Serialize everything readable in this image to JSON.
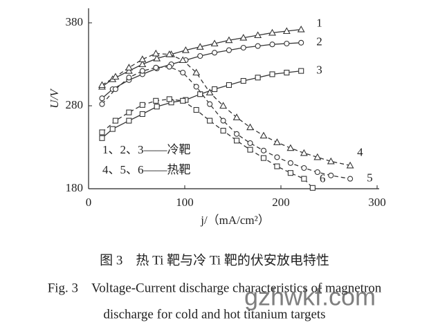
{
  "chart_data": {
    "type": "line",
    "x_label": "j/（mA/cm²）",
    "y_label": "U/V",
    "xlim": [
      0,
      300
    ],
    "xticks": [
      0,
      100,
      200,
      300
    ],
    "ylim": [
      180,
      380
    ],
    "yticks": [
      180,
      280,
      380
    ],
    "series": [
      {
        "name": "1",
        "color": "#333333",
        "marker": "triangle",
        "dashed": false,
        "x": [
          14,
          25,
          42,
          56,
          71,
          86,
          101,
          116,
          131,
          146,
          161,
          176,
          191,
          206,
          221
        ],
        "values": [
          303,
          312,
          322,
          330,
          337,
          342,
          347,
          351,
          355,
          359,
          362,
          365,
          368,
          370,
          372
        ]
      },
      {
        "name": "2",
        "color": "#333333",
        "marker": "circle",
        "dashed": false,
        "x": [
          14,
          25,
          42,
          56,
          71,
          86,
          101,
          116,
          131,
          146,
          161,
          176,
          191,
          206,
          221
        ],
        "values": [
          289,
          300,
          311,
          318,
          325,
          330,
          335,
          340,
          344,
          347,
          350,
          352,
          354,
          355,
          356
        ]
      },
      {
        "name": "3",
        "color": "#333333",
        "marker": "square",
        "dashed": false,
        "x": [
          14,
          25,
          42,
          56,
          71,
          86,
          101,
          116,
          131,
          146,
          161,
          176,
          191,
          206,
          221
        ],
        "values": [
          241,
          252,
          262,
          270,
          279,
          284,
          287,
          294,
          300,
          305,
          310,
          314,
          318,
          320,
          322
        ]
      },
      {
        "name": "4",
        "color": "#333333",
        "marker": "triangle",
        "dashed": true,
        "x": [
          14,
          28,
          42,
          56,
          70,
          84,
          98,
          112,
          126,
          140,
          154,
          168,
          182,
          196,
          210,
          224,
          238,
          252,
          272
        ],
        "values": [
          305,
          315,
          326,
          336,
          343,
          342,
          335,
          320,
          296,
          280,
          266,
          254,
          244,
          236,
          229,
          223,
          218,
          213,
          208
        ]
      },
      {
        "name": "5",
        "color": "#333333",
        "marker": "circle",
        "dashed": true,
        "x": [
          14,
          28,
          42,
          56,
          70,
          84,
          98,
          112,
          126,
          140,
          154,
          168,
          182,
          196,
          210,
          224,
          238,
          252,
          272
        ],
        "values": [
          282,
          300,
          314,
          322,
          326,
          327,
          320,
          303,
          282,
          262,
          246,
          235,
          226,
          218,
          211,
          205,
          200,
          196,
          192
        ]
      },
      {
        "name": "6",
        "color": "#333333",
        "marker": "square",
        "dashed": true,
        "x": [
          14,
          28,
          42,
          56,
          70,
          84,
          98,
          112,
          126,
          140,
          154,
          168,
          182,
          196,
          210,
          224,
          233
        ],
        "values": [
          248,
          262,
          272,
          281,
          286,
          288,
          286,
          275,
          262,
          250,
          238,
          227,
          217,
          207,
          199,
          192,
          181
        ]
      }
    ],
    "legend_text": [
      "1、2、3——冷靶",
      "4、5、6——热靶"
    ],
    "caption_cn": "图 3　热 Ti 靶与冷 Ti 靶的伏安放电特性",
    "caption_en": [
      "Fig. 3　Voltage-Current discharge characteristics of magnetron",
      "discharge for cold and hot titanium targets"
    ],
    "watermark": "gzhwkf.com"
  }
}
